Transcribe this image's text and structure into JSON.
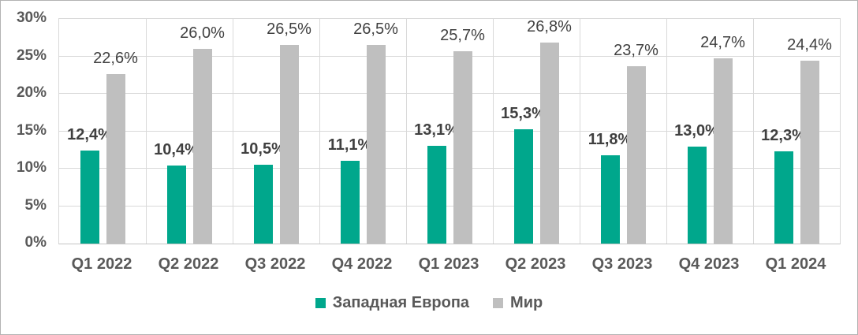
{
  "chart_data": {
    "type": "bar",
    "title": "",
    "categories": [
      "Q1 2022",
      "Q2 2022",
      "Q3 2022",
      "Q4 2022",
      "Q1 2023",
      "Q2 2023",
      "Q3 2023",
      "Q4 2023",
      "Q1 2024"
    ],
    "series": [
      {
        "name": "Западная Европа",
        "color": "#00A78C",
        "values": [
          12.4,
          10.4,
          10.5,
          11.1,
          13.1,
          15.3,
          11.8,
          13.0,
          12.3
        ],
        "labels": [
          "12,4%",
          "10,4%",
          "10,5%",
          "11,1%",
          "13,1%",
          "15,3%",
          "11,8%",
          "13,0%",
          "12,3%"
        ],
        "label_weight": "bold"
      },
      {
        "name": "Мир",
        "color": "#BFBFBF",
        "values": [
          22.6,
          26.0,
          26.5,
          26.5,
          25.7,
          26.8,
          23.7,
          24.7,
          24.4
        ],
        "labels": [
          "22,6%",
          "26,0%",
          "26,5%",
          "26,5%",
          "25,7%",
          "26,8%",
          "23,7%",
          "24,7%",
          "24,4%"
        ],
        "label_weight": "normal"
      }
    ],
    "y_axis": {
      "min": 0,
      "max": 30,
      "step": 5,
      "tick_labels": [
        "0%",
        "5%",
        "10%",
        "15%",
        "20%",
        "25%",
        "30%"
      ]
    },
    "grid": {
      "horizontal": true,
      "vertical": true
    },
    "legend_position": "bottom",
    "legend_entries": [
      "Западная Европа",
      "Мир"
    ]
  },
  "colors": {
    "series_west_europe": "#00A78C",
    "series_world": "#BFBFBF",
    "data_label_text": "#404040",
    "axis_label_text": "#595959",
    "gridline": "#D9D9D9",
    "chart_border": "#B3B3B3",
    "background": "#FFFFFF"
  }
}
